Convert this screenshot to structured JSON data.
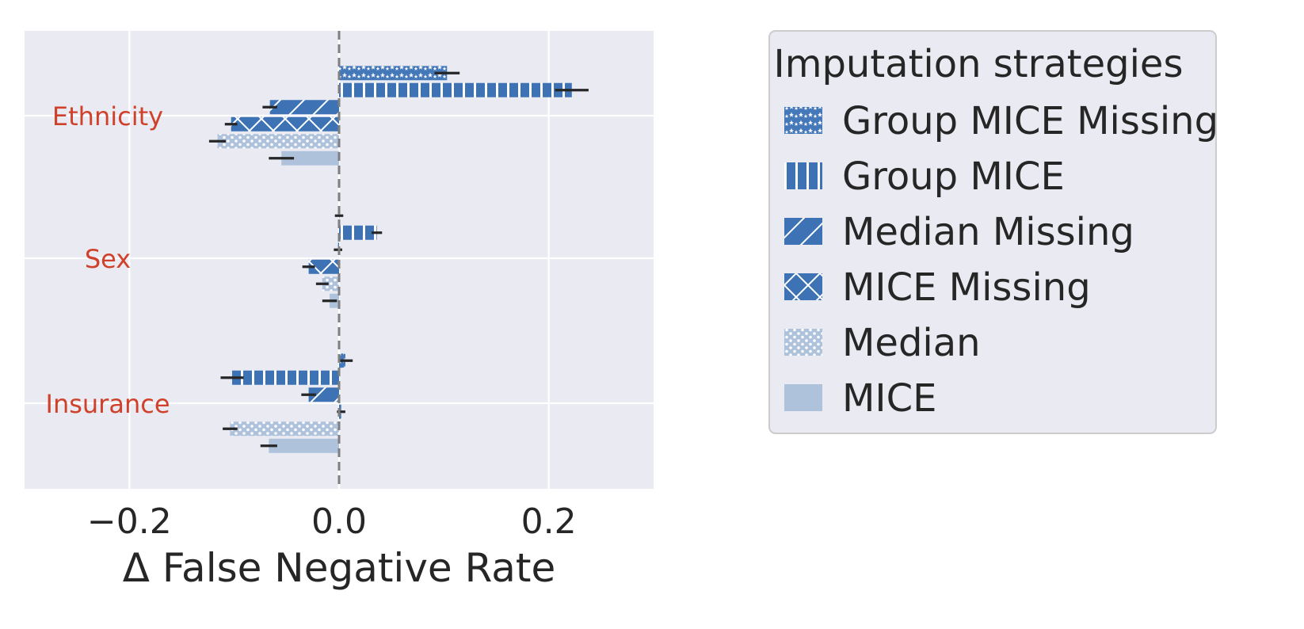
{
  "chart_data": {
    "type": "bar",
    "orientation": "horizontal",
    "categories": [
      "Ethnicity",
      "Sex",
      "Insurance"
    ],
    "category_label_color": "#d0412b",
    "xlabel": "Δ False Negative Rate",
    "xlim": [
      -0.3,
      0.3
    ],
    "xticks": [
      {
        "value": -0.2,
        "label": "−0.2"
      },
      {
        "value": 0.0,
        "label": "0.0"
      },
      {
        "value": 0.2,
        "label": "0.2"
      }
    ],
    "grid": true,
    "reference_line": {
      "value": 0.0,
      "style": "dashed"
    },
    "legend": {
      "title": "Imputation strategies",
      "placement": "outside-right"
    },
    "series": [
      {
        "name": "Group MICE Missing",
        "color": "#4478b8",
        "pattern": "stars",
        "values": [
          0.103,
          0.0,
          0.006
        ],
        "errors": [
          0.012,
          0.004,
          0.007
        ]
      },
      {
        "name": "Group MICE",
        "color": "#3d73b4",
        "pattern": "vertical",
        "values": [
          0.222,
          0.036,
          -0.102
        ],
        "errors": [
          0.016,
          0.005,
          0.011
        ]
      },
      {
        "name": "Median Missing",
        "color": "#3d73b4",
        "pattern": "diagonal",
        "values": [
          -0.066,
          -0.001,
          -0.029
        ],
        "errors": [
          0.007,
          0.004,
          0.007
        ]
      },
      {
        "name": "MICE Missing",
        "color": "#3d73b4",
        "pattern": "cross",
        "values": [
          -0.103,
          -0.029,
          0.002
        ],
        "errors": [
          0.006,
          0.006,
          0.004
        ]
      },
      {
        "name": "Median",
        "color": "#aec2dc",
        "pattern": "dots",
        "values": [
          -0.116,
          -0.016,
          -0.104
        ],
        "errors": [
          0.008,
          0.006,
          0.007
        ]
      },
      {
        "name": "MICE",
        "color": "#aec2dc",
        "pattern": "solid",
        "values": [
          -0.055,
          -0.009,
          -0.067
        ],
        "errors": [
          0.012,
          0.007,
          0.008
        ]
      }
    ]
  }
}
